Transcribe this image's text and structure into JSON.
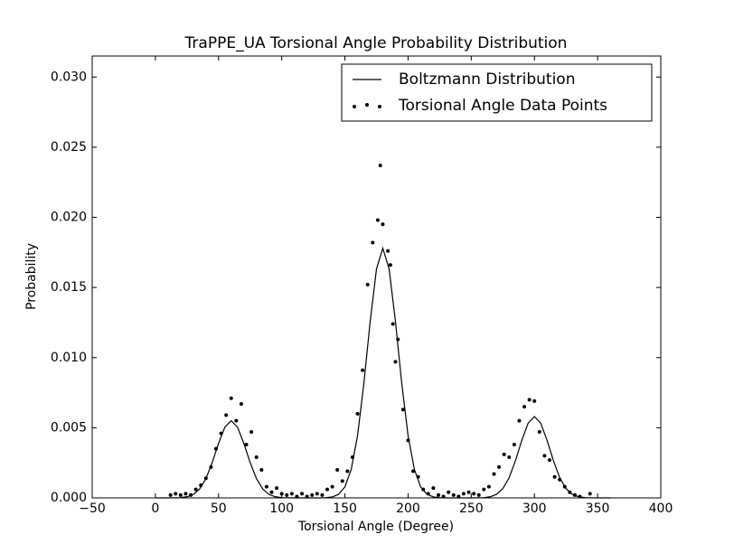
{
  "chart_data": {
    "type": "line",
    "title": "TraPPE_UA Torsional Angle Probability Distribution",
    "x_label": "Torsional Angle (Degree)",
    "y_label": "Probability",
    "xlim": [
      -50,
      400
    ],
    "ylim": [
      0,
      0.0315
    ],
    "xticks": [
      {
        "value": -50,
        "label": "−50"
      },
      0,
      50,
      100,
      150,
      200,
      250,
      300,
      350,
      400
    ],
    "yticks": [
      {
        "value": 0,
        "label": "0.000"
      },
      {
        "value": 0.005,
        "label": "0.005"
      },
      {
        "value": 0.01,
        "label": "0.010"
      },
      {
        "value": 0.015,
        "label": "0.015"
      },
      {
        "value": 0.02,
        "label": "0.020"
      },
      {
        "value": 0.025,
        "label": "0.025"
      },
      {
        "value": 0.03,
        "label": "0.030"
      }
    ],
    "grid": false,
    "legend": "upper right",
    "series": [
      {
        "name": "Boltzmann Distribution",
        "type": "line",
        "color": "#000000",
        "x": [
          0,
          5,
          10,
          15,
          20,
          25,
          30,
          35,
          40,
          45,
          50,
          55,
          60,
          65,
          70,
          75,
          80,
          85,
          90,
          95,
          100,
          105,
          110,
          115,
          120,
          125,
          130,
          135,
          140,
          145,
          150,
          155,
          160,
          165,
          170,
          175,
          180,
          185,
          190,
          195,
          200,
          205,
          210,
          215,
          220,
          225,
          230,
          235,
          240,
          245,
          250,
          255,
          260,
          265,
          270,
          275,
          280,
          285,
          290,
          295,
          300,
          305,
          310,
          315,
          320,
          325,
          330,
          335,
          340,
          345,
          350,
          355,
          360
        ],
        "values": [
          0,
          0,
          0,
          1e-05,
          2e-05,
          8e-05,
          0.00024,
          0.00063,
          0.00137,
          0.00252,
          0.00389,
          0.00504,
          0.0055,
          0.00504,
          0.00389,
          0.00252,
          0.00137,
          0.00063,
          0.00024,
          8e-05,
          2e-05,
          1e-05,
          0,
          0,
          0,
          0,
          0,
          2e-05,
          7e-05,
          0.00025,
          0.00078,
          0.00203,
          0.00443,
          0.00815,
          0.01258,
          0.01632,
          0.0178,
          0.01632,
          0.01258,
          0.00815,
          0.00443,
          0.00203,
          0.00078,
          0.00025,
          7e-05,
          2e-05,
          0,
          0,
          0,
          0,
          0,
          1e-05,
          2e-05,
          8e-05,
          0.00025,
          0.00066,
          0.00144,
          0.00266,
          0.0041,
          0.00532,
          0.0058,
          0.00532,
          0.0041,
          0.00266,
          0.00144,
          0.00066,
          0.00025,
          8e-05,
          2e-05,
          1e-05,
          0,
          0,
          0
        ]
      },
      {
        "name": "Torsional Angle Data Points",
        "type": "scatter",
        "color": "#000000",
        "x": [
          12,
          16,
          20,
          24,
          28,
          32,
          36,
          40,
          44,
          48,
          52,
          56,
          60,
          64,
          68,
          72,
          76,
          80,
          84,
          88,
          92,
          96,
          100,
          104,
          108,
          112,
          116,
          120,
          124,
          128,
          132,
          136,
          140,
          144,
          148,
          152,
          156,
          160,
          164,
          168,
          172,
          176,
          178,
          180,
          184,
          186,
          188,
          190,
          192,
          196,
          200,
          204,
          208,
          212,
          216,
          220,
          224,
          228,
          232,
          236,
          240,
          244,
          248,
          252,
          256,
          260,
          264,
          268,
          272,
          276,
          280,
          284,
          288,
          292,
          296,
          300,
          304,
          308,
          312,
          316,
          320,
          324,
          328,
          332,
          336,
          344
        ],
        "values": [
          0.0002,
          0.0003,
          0.0002,
          0.0003,
          0.0002,
          0.0006,
          0.0009,
          0.0014,
          0.0022,
          0.0035,
          0.0046,
          0.0059,
          0.0071,
          0.0055,
          0.0067,
          0.0038,
          0.0047,
          0.0029,
          0.002,
          0.0008,
          0.0004,
          0.0007,
          0.0003,
          0.0002,
          0.0003,
          0.0001,
          0.0003,
          0.0001,
          0.0002,
          0.0003,
          0.0002,
          0.0006,
          0.0008,
          0.002,
          0.0012,
          0.0019,
          0.0029,
          0.006,
          0.0091,
          0.0152,
          0.0182,
          0.0198,
          0.0237,
          0.0195,
          0.0176,
          0.0166,
          0.0124,
          0.0097,
          0.0113,
          0.0063,
          0.0041,
          0.0019,
          0.0015,
          0.0006,
          0.0003,
          0.0007,
          0.0002,
          0.0001,
          0.0004,
          0.0002,
          0.0001,
          0.0003,
          0.0004,
          0.0003,
          0.0002,
          0.0006,
          0.0008,
          0.0017,
          0.0022,
          0.0031,
          0.0029,
          0.0038,
          0.0055,
          0.0065,
          0.007,
          0.0069,
          0.0047,
          0.003,
          0.0027,
          0.0015,
          0.0013,
          0.0008,
          0.0004,
          0.0002,
          0.0001,
          0.0003
        ]
      }
    ]
  }
}
